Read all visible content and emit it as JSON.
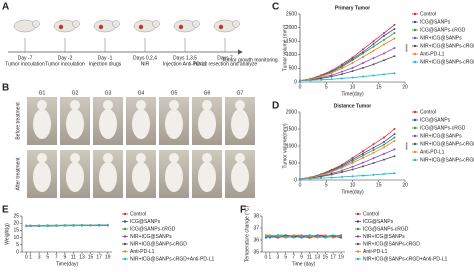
{
  "panels": {
    "labels": [
      "A",
      "B",
      "C",
      "D",
      "E",
      "F"
    ]
  },
  "timeline": {
    "steps": [
      {
        "day": "Day -7",
        "event": "Tumor inoculation"
      },
      {
        "day": "Day -2",
        "event": "Tumor inoculation"
      },
      {
        "day": "Day -1",
        "event": "Injection drugs"
      },
      {
        "day": "Days 0,2,4",
        "event": "NIR"
      },
      {
        "day": "Days 1,3,5",
        "event": "Injection Anti-PD-L1"
      },
      {
        "day": "Days 7",
        "event": "Tumor resection and analyze"
      }
    ],
    "end": "Tumor growth monitoring"
  },
  "photos": {
    "groups": [
      "G1",
      "G2",
      "G3",
      "G4",
      "G5",
      "G6",
      "G7"
    ],
    "rows": [
      "Before treatment",
      "After treatment"
    ]
  },
  "chart_data": [
    {
      "type": "line",
      "title": "Primary Tumor",
      "xlabel": "Time(day)",
      "ylabel": "Tumor volume (mm³)",
      "annotation": "****",
      "x": [
        0,
        2,
        4,
        6,
        8,
        10,
        12,
        14,
        16,
        18
      ],
      "xlim": [
        0,
        20
      ],
      "xticks": [
        0,
        5,
        10,
        15,
        20
      ],
      "ylim": [
        0,
        2500
      ],
      "yticks": [
        0,
        500,
        1000,
        1500,
        2000,
        2500
      ],
      "series": [
        {
          "name": "Control",
          "color": "#e4262b",
          "values": [
            50,
            120,
            250,
            420,
            650,
            900,
            1200,
            1500,
            1800,
            2100
          ]
        },
        {
          "name": "ICG@SANPs",
          "color": "#2f4fc4",
          "values": [
            50,
            110,
            230,
            380,
            600,
            850,
            1100,
            1400,
            1700,
            1950
          ]
        },
        {
          "name": "ICG@SANPs-cRGD",
          "color": "#3a9a3a",
          "values": [
            50,
            110,
            220,
            360,
            560,
            800,
            1050,
            1300,
            1550,
            1800
          ]
        },
        {
          "name": "NIR+ICG@SANPs",
          "color": "#8e44c9",
          "values": [
            50,
            90,
            160,
            250,
            380,
            520,
            700,
            880,
            1050,
            1250
          ]
        },
        {
          "name": "NIR+ICG@SANPs-cRGD",
          "color": "#555555",
          "values": [
            50,
            80,
            130,
            200,
            290,
            400,
            520,
            650,
            800,
            950
          ]
        },
        {
          "name": "Anti-PD-L1",
          "color": "#e8882a",
          "values": [
            50,
            100,
            200,
            330,
            500,
            700,
            920,
            1150,
            1380,
            1600
          ]
        },
        {
          "name": "NIR+ICG@SANPs-cRGD+Anti-PD-L1",
          "color": "#18b7d4",
          "values": [
            50,
            60,
            80,
            100,
            130,
            160,
            200,
            240,
            280,
            320
          ]
        }
      ]
    },
    {
      "type": "line",
      "title": "Distance Tumor",
      "xlabel": "Time(day)",
      "ylabel": "Tumor volume(mm³)",
      "annotation": "****",
      "x": [
        0,
        2,
        4,
        6,
        8,
        10,
        12,
        14,
        16,
        18
      ],
      "xlim": [
        0,
        20
      ],
      "xticks": [
        0,
        5,
        10,
        15,
        20
      ],
      "ylim": [
        0,
        2000
      ],
      "yticks": [
        0,
        500,
        1000,
        1500,
        2000
      ],
      "series": [
        {
          "name": "Control",
          "color": "#e4262b",
          "values": [
            30,
            80,
            170,
            300,
            450,
            650,
            850,
            1050,
            1250,
            1500
          ]
        },
        {
          "name": "ICG@SANPs",
          "color": "#2f4fc4",
          "values": [
            30,
            75,
            160,
            280,
            420,
            600,
            780,
            950,
            1120,
            1350
          ]
        },
        {
          "name": "ICG@SANPs-cRGD",
          "color": "#3a9a3a",
          "values": [
            30,
            70,
            150,
            260,
            390,
            550,
            720,
            880,
            1040,
            1250
          ]
        },
        {
          "name": "NIR+ICG@SANPs",
          "color": "#8e44c9",
          "values": [
            30,
            60,
            120,
            190,
            280,
            390,
            510,
            640,
            770,
            900
          ]
        },
        {
          "name": "NIR+ICG@SANPs-cRGD",
          "color": "#555555",
          "values": [
            30,
            55,
            100,
            160,
            230,
            310,
            400,
            500,
            600,
            700
          ]
        },
        {
          "name": "Anti-PD-L1",
          "color": "#e8882a",
          "values": [
            30,
            70,
            140,
            240,
            360,
            500,
            650,
            800,
            960,
            1150
          ]
        },
        {
          "name": "NIR+ICG@SANPs-cRGD+Anti-PD-L1",
          "color": "#18b7d4",
          "values": [
            30,
            40,
            55,
            70,
            90,
            110,
            130,
            150,
            175,
            200
          ]
        }
      ]
    },
    {
      "type": "line",
      "xlabel": "Time(day)",
      "ylabel": "Weight(g)",
      "x": [
        0,
        1,
        3,
        5,
        7,
        9,
        11,
        13,
        15,
        17,
        19
      ],
      "xlim": [
        -1,
        20
      ],
      "xticks": [
        0,
        1,
        3,
        5,
        7,
        9,
        11,
        13,
        15,
        17,
        19
      ],
      "ylim": [
        0,
        25
      ],
      "yticks": [
        0,
        5,
        10,
        15,
        20,
        25
      ],
      "series": [
        {
          "name": "Control",
          "color": "#e4262b",
          "values": [
            18.2,
            18.4,
            18.3,
            18.5,
            18.6,
            18.4,
            18.7,
            18.5,
            18.6,
            18.8,
            18.7
          ]
        },
        {
          "name": "ICG@SANPs",
          "color": "#2f4fc4",
          "values": [
            18.0,
            18.1,
            18.3,
            18.2,
            18.4,
            18.3,
            18.5,
            18.4,
            18.6,
            18.5,
            18.6
          ]
        },
        {
          "name": "ICG@SANPs-cRGD",
          "color": "#3a9a3a",
          "values": [
            18.4,
            18.3,
            18.5,
            18.6,
            18.5,
            18.7,
            18.6,
            18.8,
            18.7,
            18.9,
            18.8
          ]
        },
        {
          "name": "NIR+ICG@SANPs",
          "color": "#8e44c9",
          "values": [
            17.9,
            18.0,
            18.1,
            18.0,
            18.2,
            18.3,
            18.2,
            18.4,
            18.3,
            18.5,
            18.4
          ]
        },
        {
          "name": "NIR+ICG@SANPs-cRGD",
          "color": "#555555",
          "values": [
            18.1,
            18.2,
            18.0,
            18.3,
            18.2,
            18.4,
            18.5,
            18.3,
            18.5,
            18.6,
            18.5
          ]
        },
        {
          "name": "Anti-PD-L1",
          "color": "#e8882a",
          "values": [
            18.3,
            18.5,
            18.4,
            18.3,
            18.6,
            18.5,
            18.4,
            18.6,
            18.8,
            18.7,
            18.9
          ]
        },
        {
          "name": "NIR+ICG@SANPs-cRGD+Anti-PD-L1",
          "color": "#18b7d4",
          "values": [
            18.0,
            18.2,
            18.2,
            18.1,
            18.3,
            18.2,
            18.4,
            18.3,
            18.4,
            18.6,
            18.5
          ]
        }
      ]
    },
    {
      "type": "line",
      "xlabel": "Time (day)",
      "ylabel": "Temperature change (°C)",
      "x": [
        0,
        1,
        3,
        5,
        7,
        9,
        11,
        13,
        15,
        17,
        19
      ],
      "xlim": [
        -1,
        20
      ],
      "xticks": [
        0,
        1,
        3,
        5,
        7,
        9,
        11,
        13,
        15,
        17,
        19
      ],
      "ylim": [
        35,
        38
      ],
      "yticks": [
        35,
        36,
        37,
        38
      ],
      "series": [
        {
          "name": "Control",
          "color": "#e4262b",
          "values": [
            36.3,
            36.4,
            36.2,
            36.3,
            36.4,
            36.3,
            36.2,
            36.4,
            36.3,
            36.3,
            36.4
          ]
        },
        {
          "name": "ICG@SANPs",
          "color": "#2f4fc4",
          "values": [
            36.2,
            36.3,
            36.3,
            36.2,
            36.3,
            36.4,
            36.3,
            36.2,
            36.3,
            36.4,
            36.3
          ]
        },
        {
          "name": "ICG@SANPs-cRGD",
          "color": "#3a9a3a",
          "values": [
            36.4,
            36.3,
            36.4,
            36.4,
            36.2,
            36.3,
            36.4,
            36.3,
            36.2,
            36.3,
            36.2
          ]
        },
        {
          "name": "NIR+ICG@SANPs",
          "color": "#8e44c9",
          "values": [
            36.3,
            36.2,
            36.3,
            36.3,
            36.3,
            36.2,
            36.3,
            36.4,
            36.4,
            36.2,
            36.3
          ]
        },
        {
          "name": "NIR+ICG@SANPs-cRGD",
          "color": "#555555",
          "values": [
            36.2,
            36.3,
            36.2,
            36.4,
            36.3,
            36.3,
            36.2,
            36.3,
            36.3,
            36.3,
            36.2
          ]
        },
        {
          "name": "Anti-PD-L1",
          "color": "#e8882a",
          "values": [
            36.4,
            36.4,
            36.3,
            36.2,
            36.4,
            36.4,
            36.3,
            36.2,
            36.4,
            36.2,
            36.3
          ]
        },
        {
          "name": "NIR+ICG@SANPs-cRGD+Anti-PD-L1",
          "color": "#18b7d4",
          "values": [
            36.3,
            36.3,
            36.4,
            36.3,
            36.2,
            36.3,
            36.4,
            36.3,
            36.2,
            36.4,
            36.3
          ]
        }
      ]
    }
  ]
}
